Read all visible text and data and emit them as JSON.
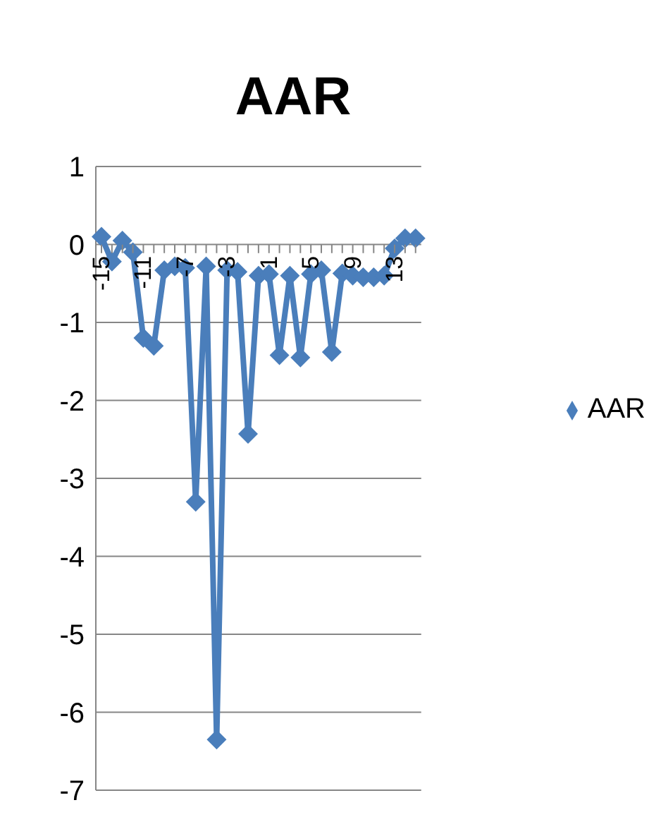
{
  "chart_data": {
    "type": "line",
    "title": "AAR",
    "categories": [
      "-15",
      null,
      null,
      null,
      "-11",
      null,
      null,
      null,
      "-7",
      null,
      null,
      null,
      "-3",
      null,
      null,
      null,
      "1",
      null,
      null,
      null,
      "5",
      null,
      null,
      null,
      "9",
      null,
      null,
      null,
      "13",
      null,
      null
    ],
    "series": [
      {
        "name": "AAR",
        "color": "#4a7ebb",
        "values": [
          0.1,
          -0.22,
          0.05,
          -0.1,
          -1.2,
          -1.3,
          -0.33,
          -0.28,
          -0.3,
          -3.3,
          -0.28,
          -6.35,
          -0.33,
          -0.35,
          -2.43,
          -0.4,
          -0.38,
          -1.42,
          -0.4,
          -1.45,
          -0.38,
          -0.33,
          -1.38,
          -0.37,
          -0.4,
          -0.42,
          -0.42,
          -0.4,
          -0.05,
          0.08,
          0.08
        ]
      }
    ],
    "ylim": [
      -7,
      1
    ],
    "yticks": [
      -7,
      -6,
      -5,
      -4,
      -3,
      -2,
      -1,
      0,
      1
    ],
    "grid": "y",
    "legend": "right",
    "marker": "diamond",
    "line_style": "solid"
  }
}
